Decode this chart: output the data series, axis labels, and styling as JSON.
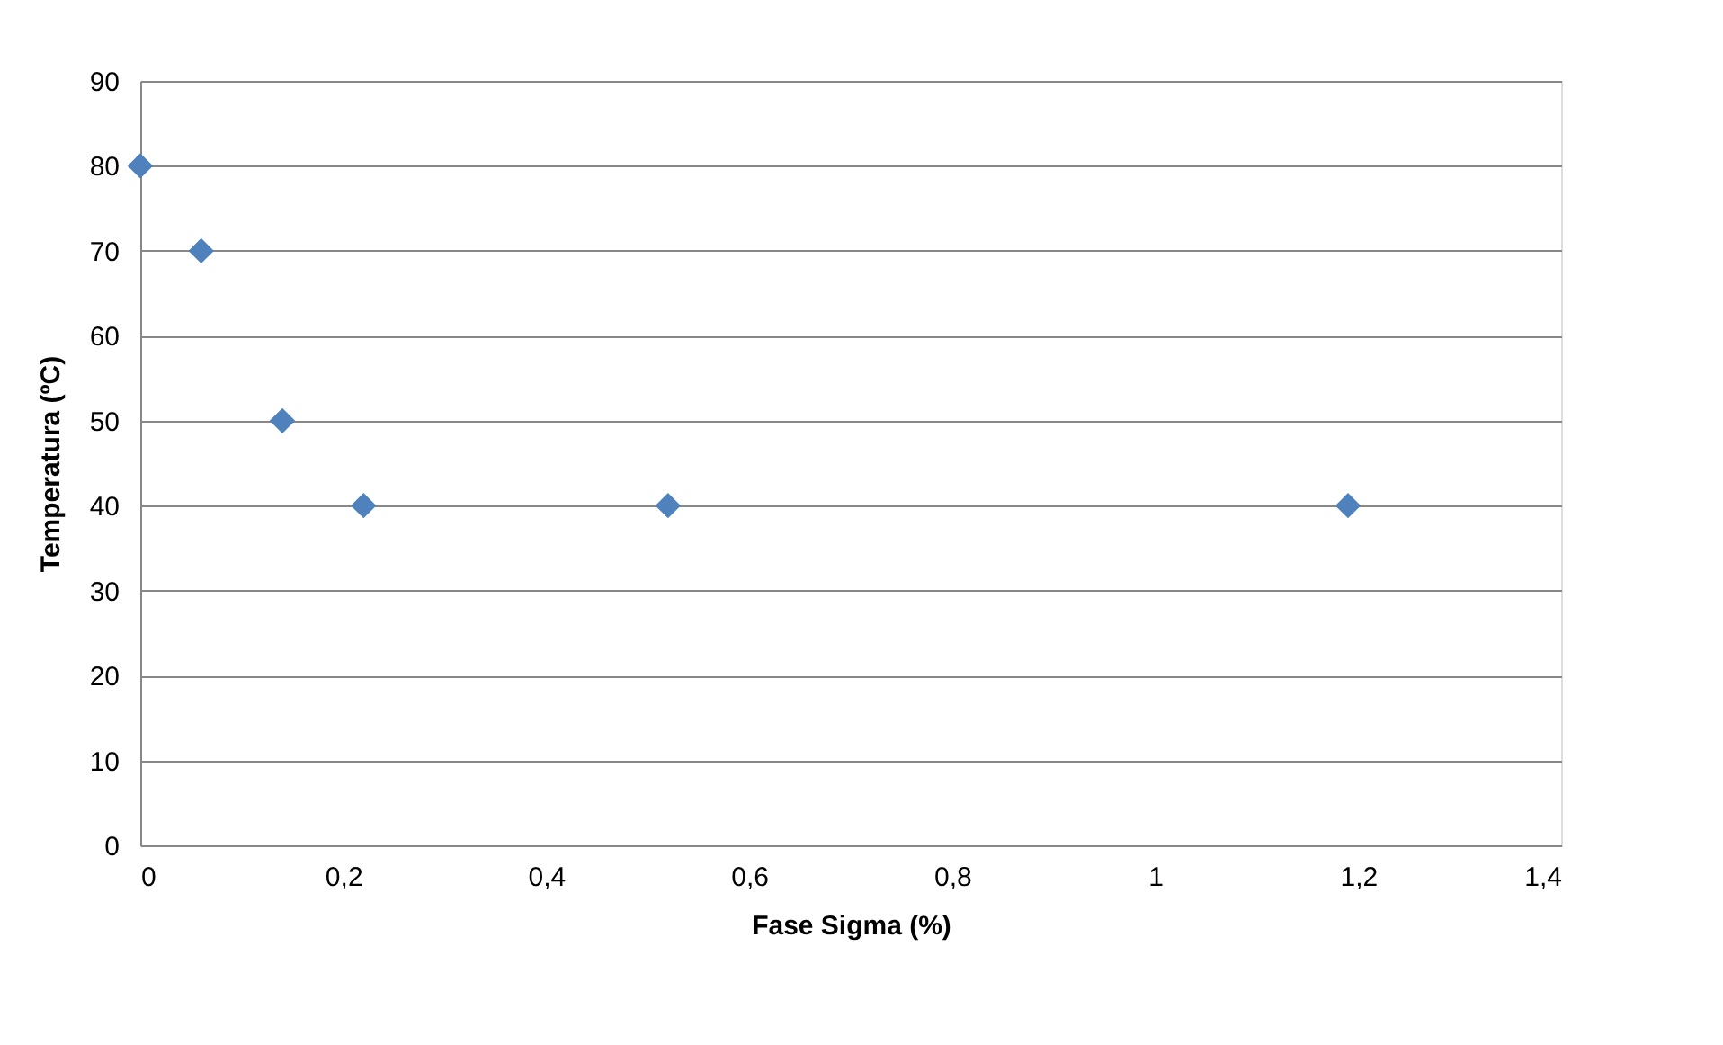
{
  "chart_data": {
    "type": "scatter",
    "xlabel": "Fase Sigma (%)",
    "ylabel": "Temperatura (ºC)",
    "x": [
      0,
      0.06,
      0.14,
      0.22,
      0.52,
      1.19
    ],
    "series": [
      {
        "color": "#4f81bd",
        "values": [
          80,
          70,
          50,
          40,
          40,
          40
        ]
      }
    ],
    "xlim": [
      0,
      1.4
    ],
    "xticks": [
      0,
      {
        "value": 0.2,
        "label": "0,2"
      },
      {
        "value": 0.4,
        "label": "0,4"
      },
      {
        "value": 0.6,
        "label": "0,6"
      },
      {
        "value": 0.8,
        "label": "0,8"
      },
      1,
      {
        "value": 1.2,
        "label": "1,2"
      },
      {
        "value": 1.4,
        "label": "1,4"
      }
    ],
    "ylim": [
      0,
      90
    ],
    "yticks": [
      0,
      10,
      20,
      30,
      40,
      50,
      60,
      70,
      80,
      90
    ],
    "grid": "y",
    "marker": "diamond"
  }
}
